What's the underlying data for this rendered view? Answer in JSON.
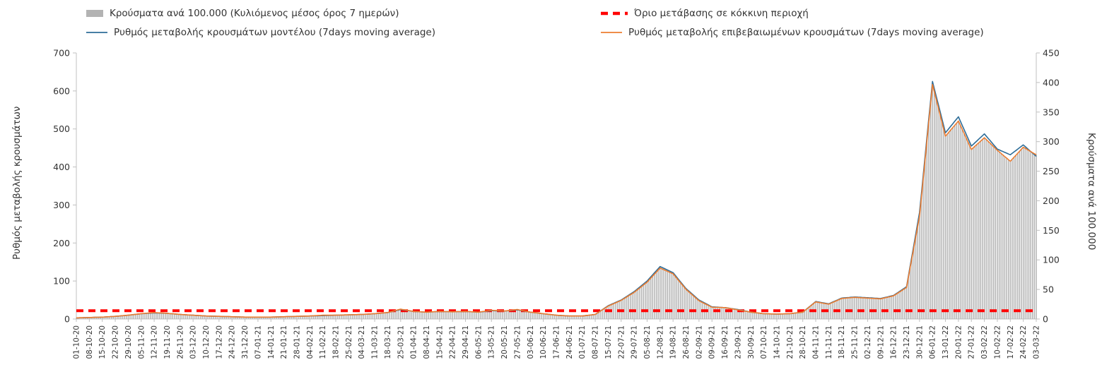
{
  "legend": {
    "bars": "Κρούσματα ανά 100.000 (Κυλιόμενος μέσος όρος 7 ημερών)",
    "threshold": "Όριο μετάβασης σε κόκκινη περιοχή",
    "model": "Ρυθμός μεταβολής κρουσμάτων μοντέλου (7days moving average)",
    "confirmed": "Ρυθμός μεταβολής επιβεβαιωμένων κρουσμάτων (7days moving average)"
  },
  "axes": {
    "left_title": "Ρυθμός μεταβολής κρουσμάτων",
    "right_title": "Κρούσματα ανά 100.000"
  },
  "colors": {
    "bars": "#b3b3b3",
    "threshold": "#ff0000",
    "model": "#2e6d98",
    "confirmed": "#ed7d31",
    "axis": "#c0c0c0",
    "text": "#333333"
  },
  "chart_data": {
    "type": "bar+line",
    "note": "values are weekly anchors at the labeled dates; figure renders daily bars/lines by linear interpolation between anchors",
    "categories": [
      "01-10-20",
      "08-10-20",
      "15-10-20",
      "22-10-20",
      "29-10-20",
      "05-11-20",
      "12-11-20",
      "19-11-20",
      "26-11-20",
      "03-12-20",
      "10-12-20",
      "17-12-20",
      "24-12-20",
      "31-12-20",
      "07-01-21",
      "14-01-21",
      "21-01-21",
      "28-01-21",
      "04-02-21",
      "11-02-21",
      "18-02-21",
      "25-02-21",
      "04-03-21",
      "11-03-21",
      "18-03-21",
      "25-03-21",
      "01-04-21",
      "08-04-21",
      "15-04-21",
      "22-04-21",
      "29-04-21",
      "06-05-21",
      "13-05-21",
      "20-05-21",
      "27-05-21",
      "03-06-21",
      "10-06-21",
      "17-06-21",
      "24-06-21",
      "01-07-21",
      "08-07-21",
      "15-07-21",
      "22-07-21",
      "29-07-21",
      "05-08-21",
      "12-08-21",
      "19-08-21",
      "26-08-21",
      "02-09-21",
      "09-09-21",
      "16-09-21",
      "23-09-21",
      "30-09-21",
      "07-10-21",
      "14-10-21",
      "21-10-21",
      "28-10-21",
      "04-11-21",
      "11-11-21",
      "18-11-21",
      "25-11-21",
      "02-12-21",
      "09-12-21",
      "16-12-21",
      "23-12-21",
      "30-12-21",
      "06-01-22",
      "13-01-22",
      "20-01-22",
      "27-01-22",
      "03-02-22",
      "10-02-22",
      "17-02-22",
      "24-02-22",
      "03-03-22"
    ],
    "y_left": {
      "label": "Ρυθμός μεταβολής κρουσμάτων",
      "min": 0,
      "max": 700,
      "ticks": [
        0,
        100,
        200,
        300,
        400,
        500,
        600,
        700
      ]
    },
    "y_right": {
      "label": "Κρούσματα ανά 100.000",
      "min": 0,
      "max": 450,
      "ticks": [
        0,
        50,
        100,
        150,
        200,
        250,
        300,
        350,
        400,
        450
      ]
    },
    "grid": false,
    "legend_position": "top",
    "series": [
      {
        "name": "Κρούσματα ανά 100.000 (Κυλιόμενος μέσος όρος 7 ημερών)",
        "type": "bar",
        "axis": "right",
        "color": "#b3b3b3",
        "values": [
          1.9,
          2.6,
          3.2,
          4.5,
          6.4,
          9,
          10.9,
          9.6,
          7.7,
          6.4,
          5.1,
          4.5,
          3.9,
          3.2,
          3.2,
          3.2,
          3.9,
          4.5,
          5.1,
          6.4,
          6.4,
          7.1,
          7.7,
          9,
          10.9,
          16.7,
          12.9,
          11.6,
          12.9,
          12.2,
          12.9,
          11.6,
          14.8,
          13.5,
          16.1,
          11.6,
          9,
          6.4,
          5.1,
          5.1,
          7.7,
          21.9,
          31.5,
          45,
          62.4,
          86.1,
          76.5,
          50.1,
          30.9,
          19.9,
          19.3,
          15.4,
          11.6,
          9,
          8.4,
          9,
          11.6,
          28.9,
          25.1,
          34.7,
          36.6,
          35.4,
          34.1,
          39.2,
          53.4,
          173.6,
          396.6,
          309.2,
          334.9,
          286.7,
          306.6,
          285.4,
          266.8,
          290.6,
          277.7
        ]
      },
      {
        "name": "Ρυθμός μεταβολής κρουσμάτων μοντέλου (7days moving average)",
        "type": "line",
        "axis": "left",
        "color": "#2e6d98",
        "values": [
          3,
          4,
          5,
          7,
          10,
          14,
          16,
          15,
          12,
          10,
          8,
          7,
          6,
          5,
          5,
          5,
          6,
          7,
          8,
          9,
          10,
          11,
          12,
          14,
          17,
          25,
          20,
          18,
          20,
          19,
          20,
          18,
          22,
          21,
          24,
          18,
          14,
          10,
          8,
          8,
          12,
          35,
          50,
          72,
          100,
          138,
          122,
          80,
          50,
          32,
          30,
          25,
          18,
          14,
          13,
          14,
          18,
          46,
          40,
          55,
          58,
          56,
          54,
          62,
          85,
          280,
          625,
          490,
          532,
          455,
          487,
          447,
          432,
          458,
          428
        ]
      },
      {
        "name": "Ρυθμός μεταβολής επιβεβαιωμένων κρουσμάτων (7days moving average)",
        "type": "line",
        "axis": "left",
        "color": "#ed7d31",
        "values": [
          3,
          4,
          5,
          7,
          10,
          14,
          17,
          15,
          12,
          10,
          8,
          7,
          6,
          5,
          5,
          5,
          6,
          7,
          8,
          10,
          10,
          11,
          12,
          14,
          17,
          26,
          20,
          18,
          20,
          19,
          20,
          18,
          23,
          21,
          25,
          18,
          14,
          10,
          8,
          8,
          12,
          34,
          49,
          70,
          97,
          134,
          119,
          78,
          48,
          31,
          30,
          24,
          18,
          14,
          13,
          14,
          18,
          45,
          39,
          54,
          57,
          55,
          53,
          61,
          83,
          270,
          617,
          481,
          521,
          446,
          477,
          444,
          415,
          452,
          432
        ]
      },
      {
        "name": "Όριο μετάβασης σε κόκκινη περιοχή",
        "type": "threshold",
        "axis": "right",
        "value": 14,
        "color": "#ff0000"
      }
    ]
  }
}
